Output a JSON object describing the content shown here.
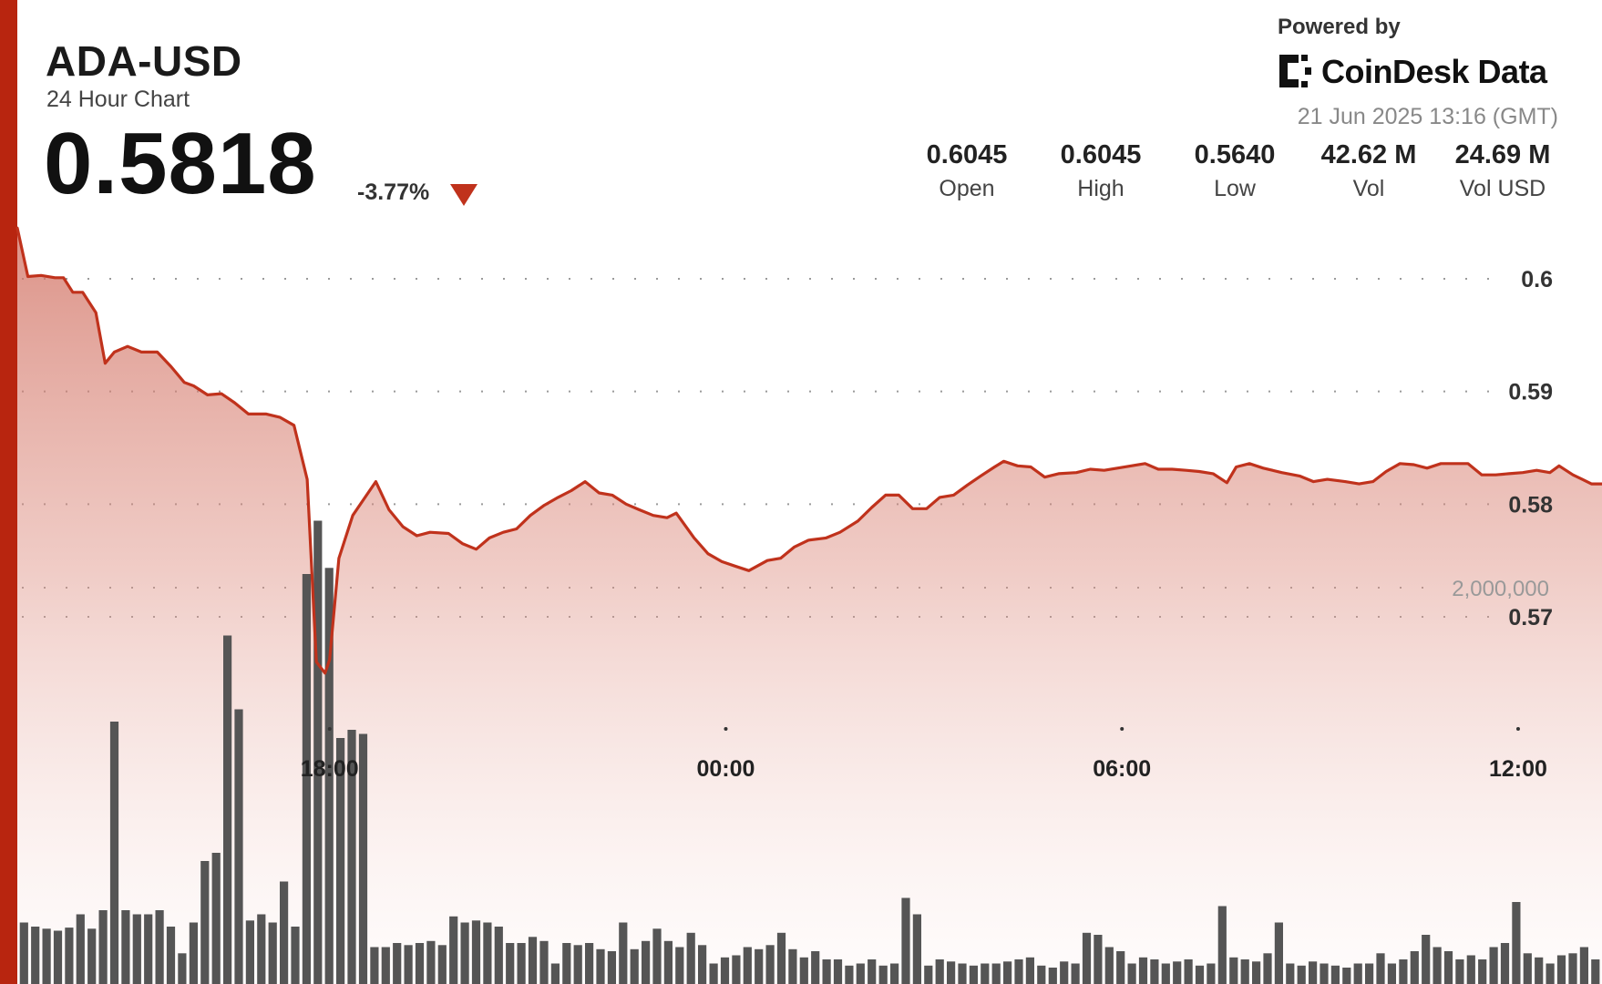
{
  "header": {
    "symbol": "ADA-USD",
    "subtitle": "24 Hour Chart",
    "price": "0.5818",
    "change": "-3.77%",
    "powered_by": "Powered by",
    "brand": "CoinDesk Data",
    "timestamp": "21 Jun 2025 13:16 (GMT)"
  },
  "stats": [
    {
      "value": "0.6045",
      "label": "Open"
    },
    {
      "value": "0.6045",
      "label": "High"
    },
    {
      "value": "0.5640",
      "label": "Low"
    },
    {
      "value": "42.62 M",
      "label": "Vol"
    },
    {
      "value": "24.69 M",
      "label": "Vol USD"
    }
  ],
  "colors": {
    "accent": "#b8250f",
    "line": "#c0321c",
    "fill_top": "#d27466",
    "volume_bar": "#555555"
  },
  "chart_data": {
    "type": "area",
    "title": "ADA-USD",
    "price_axis": {
      "ticks": [
        0.6,
        0.59,
        0.58,
        0.57
      ],
      "tick_labels": [
        "0.6",
        "0.59",
        "0.58",
        "0.57"
      ],
      "ylim": [
        0.5605,
        0.6068
      ]
    },
    "time_axis": {
      "tick_labels": [
        "18:00",
        "00:00",
        "06:00",
        "12:00"
      ],
      "tick_hours": [
        18,
        24,
        30,
        36
      ]
    },
    "volume_axis": {
      "tick_label": "2,000,000",
      "tick_value": 2000000,
      "ylim": [
        0,
        2500000
      ]
    },
    "grid": true,
    "x_start_hour": 13.27,
    "x_end_hour": 37.27,
    "series": [
      {
        "kind": "price",
        "points": [
          [
            13.27,
            0.6045
          ],
          [
            13.43,
            0.6002
          ],
          [
            13.63,
            0.6003
          ],
          [
            13.84,
            0.6001
          ],
          [
            13.97,
            0.6001
          ],
          [
            14.11,
            0.5988
          ],
          [
            14.26,
            0.5988
          ],
          [
            14.46,
            0.597
          ],
          [
            14.6,
            0.5925
          ],
          [
            14.74,
            0.5935
          ],
          [
            14.94,
            0.594
          ],
          [
            15.15,
            0.5935
          ],
          [
            15.39,
            0.5935
          ],
          [
            15.6,
            0.5922
          ],
          [
            15.8,
            0.5908
          ],
          [
            15.94,
            0.5905
          ],
          [
            16.15,
            0.5897
          ],
          [
            16.36,
            0.5898
          ],
          [
            16.56,
            0.589
          ],
          [
            16.77,
            0.588
          ],
          [
            17.04,
            0.588
          ],
          [
            17.25,
            0.5877
          ],
          [
            17.46,
            0.587
          ],
          [
            17.66,
            0.5822
          ],
          [
            17.8,
            0.566
          ],
          [
            17.93,
            0.565
          ],
          [
            18.0,
            0.5662
          ],
          [
            18.14,
            0.5752
          ],
          [
            18.35,
            0.579
          ],
          [
            18.56,
            0.5808
          ],
          [
            18.7,
            0.582
          ],
          [
            18.9,
            0.5795
          ],
          [
            19.11,
            0.578
          ],
          [
            19.32,
            0.5772
          ],
          [
            19.52,
            0.5775
          ],
          [
            19.8,
            0.5774
          ],
          [
            20.01,
            0.5765
          ],
          [
            20.22,
            0.576
          ],
          [
            20.42,
            0.577
          ],
          [
            20.63,
            0.5775
          ],
          [
            20.83,
            0.5778
          ],
          [
            21.04,
            0.579
          ],
          [
            21.25,
            0.5799
          ],
          [
            21.46,
            0.5806
          ],
          [
            21.66,
            0.5812
          ],
          [
            21.87,
            0.582
          ],
          [
            22.08,
            0.581
          ],
          [
            22.28,
            0.5808
          ],
          [
            22.49,
            0.58
          ],
          [
            22.69,
            0.5795
          ],
          [
            22.9,
            0.579
          ],
          [
            23.11,
            0.5788
          ],
          [
            23.25,
            0.5792
          ],
          [
            23.52,
            0.577
          ],
          [
            23.73,
            0.5756
          ],
          [
            23.94,
            0.5749
          ],
          [
            24.14,
            0.5745
          ],
          [
            24.35,
            0.5741
          ],
          [
            24.63,
            0.575
          ],
          [
            24.83,
            0.5752
          ],
          [
            25.04,
            0.5762
          ],
          [
            25.25,
            0.5768
          ],
          [
            25.52,
            0.577
          ],
          [
            25.73,
            0.5775
          ],
          [
            26.0,
            0.5785
          ],
          [
            26.21,
            0.5797
          ],
          [
            26.42,
            0.5808
          ],
          [
            26.62,
            0.5808
          ],
          [
            26.83,
            0.5796
          ],
          [
            27.04,
            0.5796
          ],
          [
            27.24,
            0.5806
          ],
          [
            27.45,
            0.5808
          ],
          [
            27.66,
            0.5817
          ],
          [
            27.86,
            0.5825
          ],
          [
            28.07,
            0.5833
          ],
          [
            28.21,
            0.5838
          ],
          [
            28.42,
            0.5834
          ],
          [
            28.62,
            0.5833
          ],
          [
            28.83,
            0.5824
          ],
          [
            29.04,
            0.5827
          ],
          [
            29.31,
            0.5828
          ],
          [
            29.52,
            0.5831
          ],
          [
            29.73,
            0.583
          ],
          [
            29.93,
            0.5832
          ],
          [
            30.14,
            0.5834
          ],
          [
            30.35,
            0.5836
          ],
          [
            30.55,
            0.5831
          ],
          [
            30.76,
            0.5831
          ],
          [
            30.97,
            0.583
          ],
          [
            31.17,
            0.5829
          ],
          [
            31.38,
            0.5827
          ],
          [
            31.59,
            0.5819
          ],
          [
            31.73,
            0.5833
          ],
          [
            31.93,
            0.5836
          ],
          [
            32.14,
            0.5832
          ],
          [
            32.28,
            0.583
          ],
          [
            32.42,
            0.5828
          ],
          [
            32.69,
            0.5825
          ],
          [
            32.9,
            0.582
          ],
          [
            33.11,
            0.5822
          ],
          [
            33.38,
            0.582
          ],
          [
            33.59,
            0.5818
          ],
          [
            33.8,
            0.582
          ],
          [
            34.0,
            0.5829
          ],
          [
            34.21,
            0.5836
          ],
          [
            34.42,
            0.5835
          ],
          [
            34.62,
            0.5832
          ],
          [
            34.83,
            0.5836
          ],
          [
            35.04,
            0.5836
          ],
          [
            35.24,
            0.5836
          ],
          [
            35.45,
            0.5826
          ],
          [
            35.66,
            0.5826
          ],
          [
            35.86,
            0.5827
          ],
          [
            36.07,
            0.5828
          ],
          [
            36.28,
            0.583
          ],
          [
            36.48,
            0.5828
          ],
          [
            36.62,
            0.5834
          ],
          [
            36.83,
            0.5826
          ],
          [
            36.97,
            0.5822
          ],
          [
            37.11,
            0.5818
          ],
          [
            37.27,
            0.5818
          ]
        ]
      },
      {
        "kind": "volume",
        "start_hour": 13.37,
        "end_hour": 37.17,
        "values": [
          300000,
          280000,
          270000,
          260000,
          275000,
          340000,
          270000,
          360000,
          1280000,
          360000,
          340000,
          340000,
          360000,
          280000,
          150000,
          300000,
          600000,
          640000,
          1700000,
          1340000,
          310000,
          340000,
          300000,
          500000,
          280000,
          2000000,
          2260000,
          2030000,
          1200000,
          1240000,
          1220000,
          180000,
          180000,
          200000,
          190000,
          200000,
          210000,
          190000,
          330000,
          300000,
          310000,
          300000,
          280000,
          200000,
          200000,
          230000,
          210000,
          100000,
          200000,
          190000,
          200000,
          170000,
          160000,
          300000,
          170000,
          210000,
          270000,
          210000,
          180000,
          250000,
          190000,
          100000,
          130000,
          140000,
          180000,
          170000,
          190000,
          250000,
          170000,
          130000,
          160000,
          120000,
          120000,
          90000,
          100000,
          120000,
          90000,
          100000,
          420000,
          340000,
          90000,
          120000,
          110000,
          100000,
          90000,
          100000,
          100000,
          110000,
          120000,
          130000,
          90000,
          80000,
          110000,
          100000,
          250000,
          240000,
          180000,
          160000,
          100000,
          130000,
          120000,
          100000,
          110000,
          120000,
          90000,
          100000,
          380000,
          130000,
          120000,
          110000,
          150000,
          300000,
          100000,
          90000,
          110000,
          100000,
          90000,
          80000,
          100000,
          100000,
          150000,
          100000,
          120000,
          160000,
          240000,
          180000,
          160000,
          120000,
          140000,
          120000,
          180000,
          200000,
          400000,
          150000,
          130000,
          100000,
          140000,
          150000,
          180000,
          120000
        ]
      }
    ]
  }
}
